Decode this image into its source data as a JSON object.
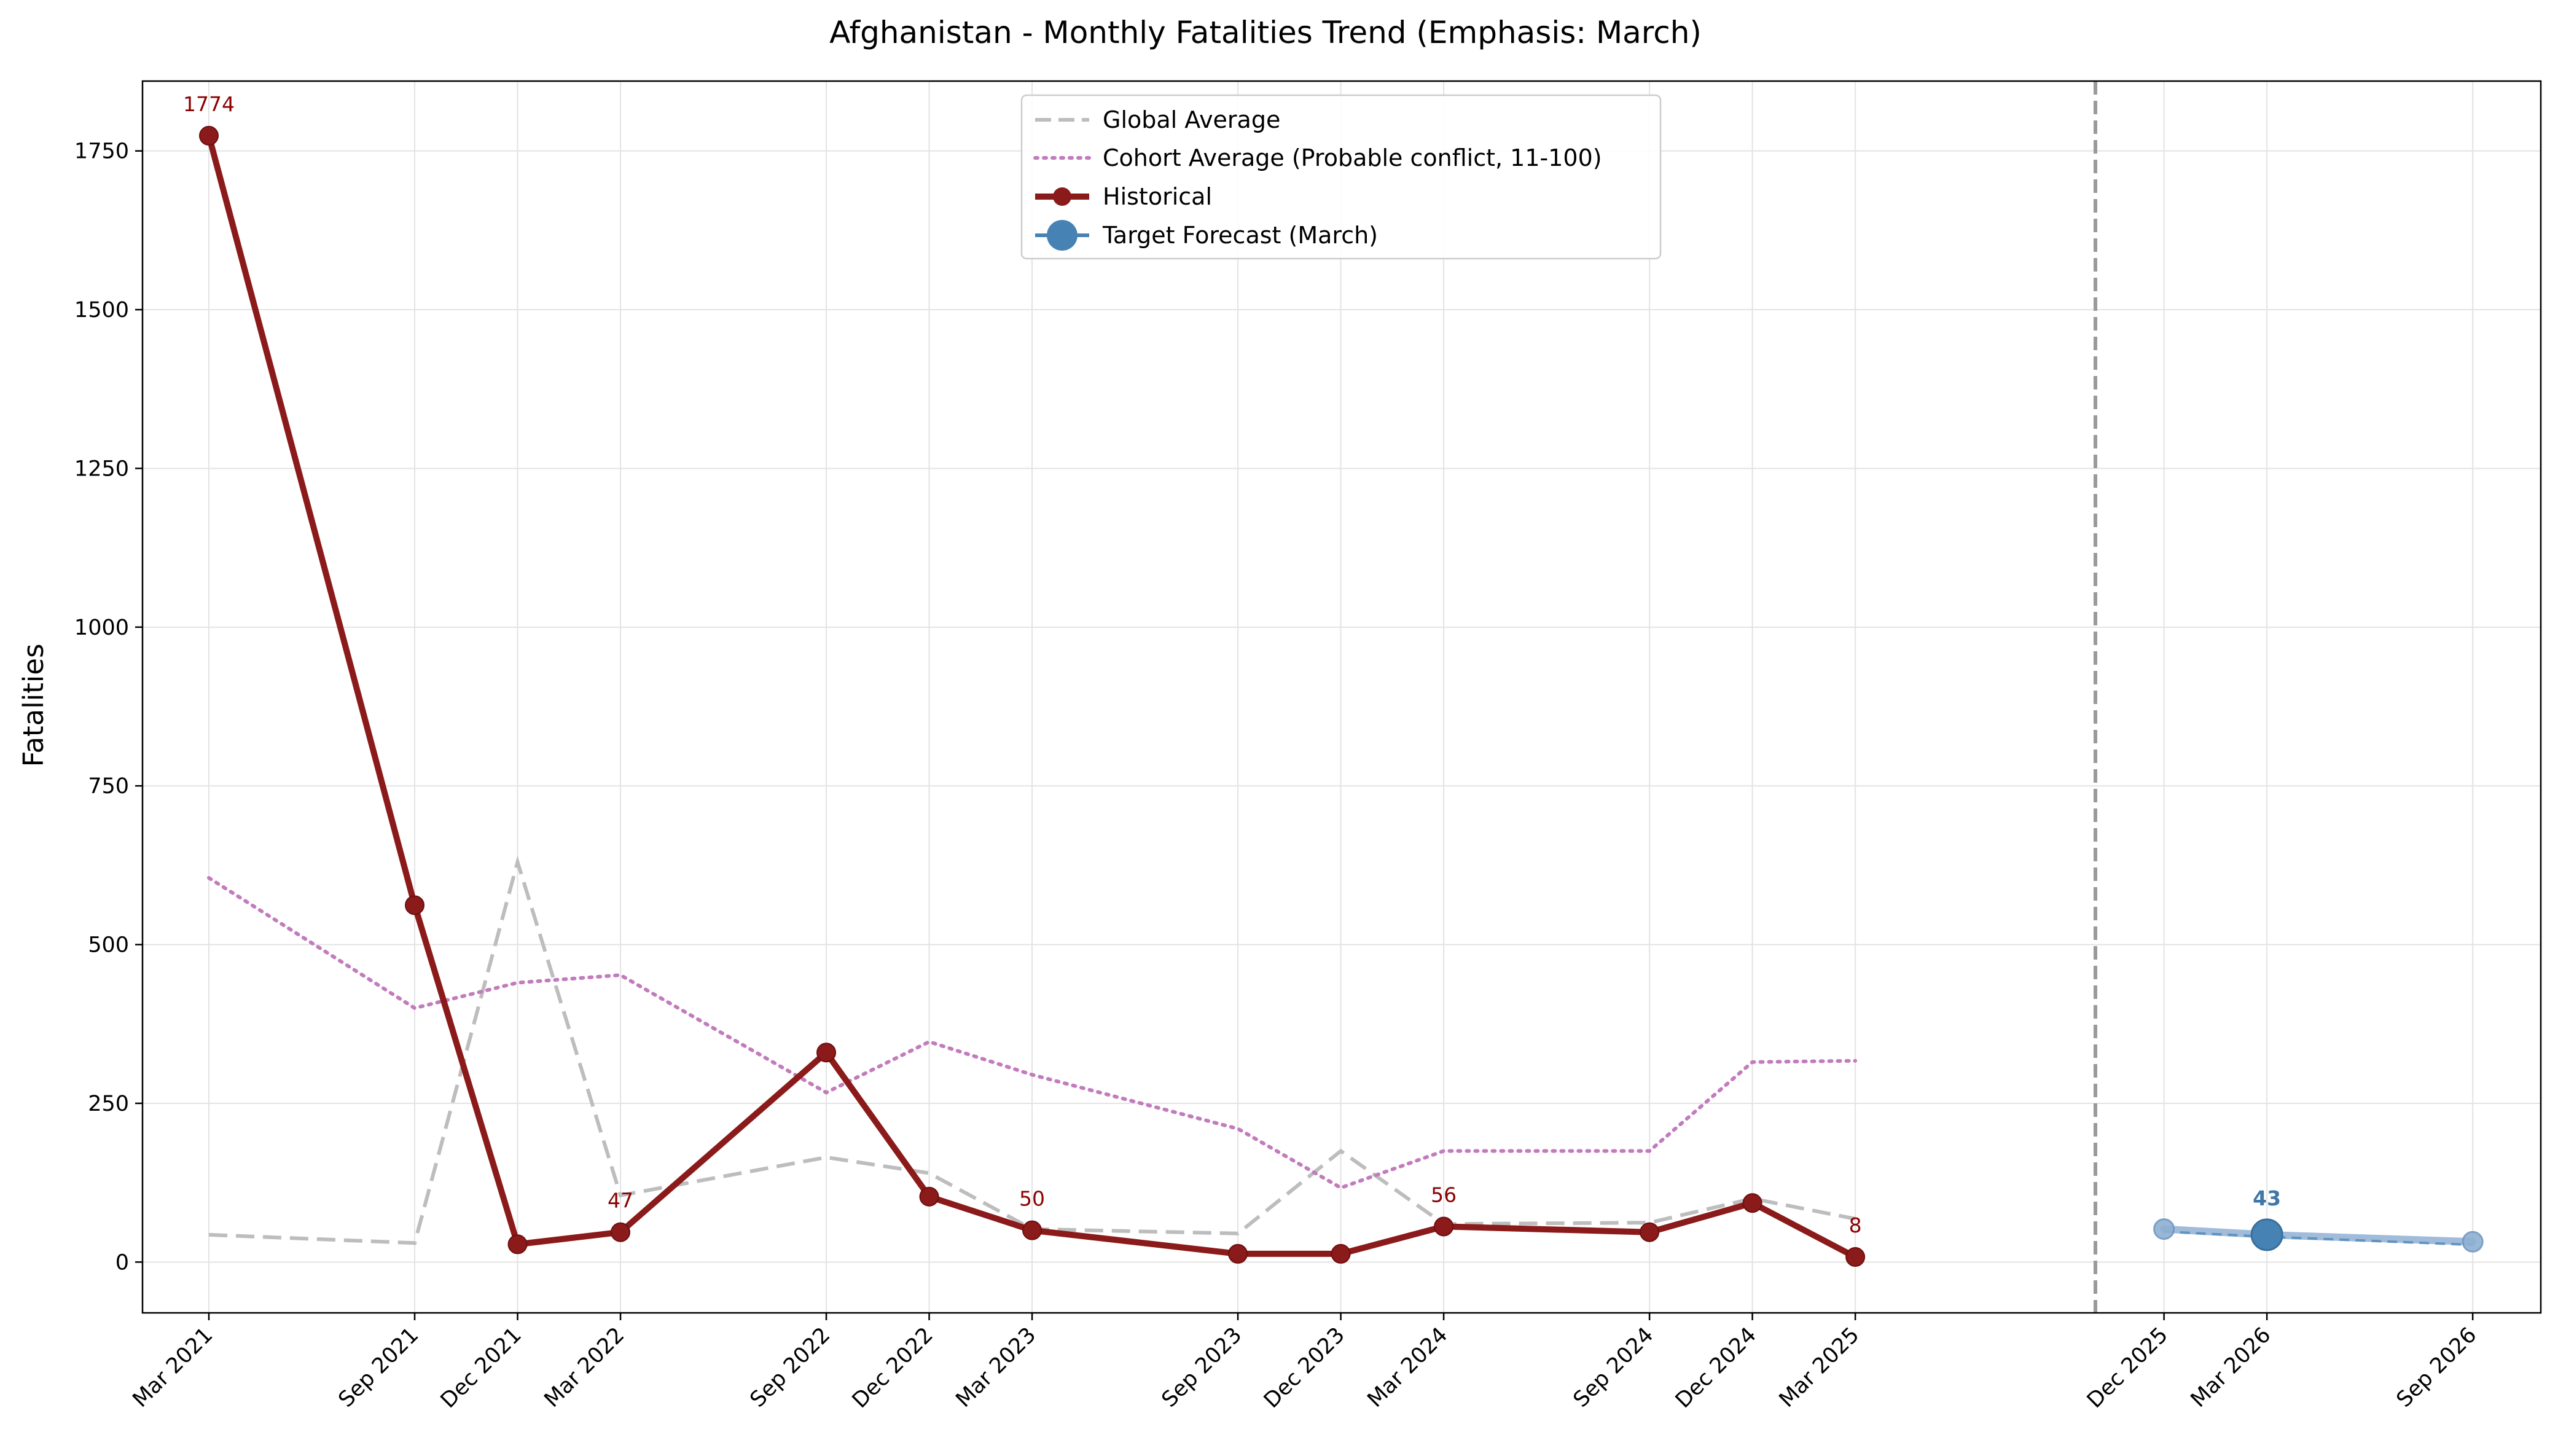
{
  "chart_data": {
    "type": "line",
    "title": "Afghanistan - Monthly Fatalities Trend (Emphasis: March)",
    "ylabel": "Fatalities",
    "xlabel": "",
    "ylim": [
      -80,
      1860
    ],
    "yticks": [
      0,
      250,
      500,
      750,
      1000,
      1250,
      1500,
      1750
    ],
    "grid": true,
    "legend_position": "upper-center",
    "x_date_range": [
      "2021-03",
      "2026-10"
    ],
    "x_ticks": [
      {
        "date": "2021-03",
        "label": "Mar 2021"
      },
      {
        "date": "2021-09",
        "label": "Sep 2021"
      },
      {
        "date": "2021-12",
        "label": "Dec 2021"
      },
      {
        "date": "2022-03",
        "label": "Mar 2022"
      },
      {
        "date": "2022-09",
        "label": "Sep 2022"
      },
      {
        "date": "2022-12",
        "label": "Dec 2022"
      },
      {
        "date": "2023-03",
        "label": "Mar 2023"
      },
      {
        "date": "2023-09",
        "label": "Sep 2023"
      },
      {
        "date": "2023-12",
        "label": "Dec 2023"
      },
      {
        "date": "2024-03",
        "label": "Mar 2024"
      },
      {
        "date": "2024-09",
        "label": "Sep 2024"
      },
      {
        "date": "2024-12",
        "label": "Dec 2024"
      },
      {
        "date": "2025-03",
        "label": "Mar 2025"
      },
      {
        "date": "2025-12",
        "label": "Dec 2025"
      },
      {
        "date": "2026-03",
        "label": "Mar 2026"
      },
      {
        "date": "2026-09",
        "label": "Sep 2026"
      }
    ],
    "forecast_divider_date": "2025-10",
    "series": [
      {
        "name": "Global Average",
        "color": "#bdbdbd",
        "style": "dashed",
        "points": [
          {
            "x": "2021-03",
            "y": 43
          },
          {
            "x": "2021-09",
            "y": 30
          },
          {
            "x": "2021-12",
            "y": 630
          },
          {
            "x": "2022-03",
            "y": 105
          },
          {
            "x": "2022-09",
            "y": 165
          },
          {
            "x": "2022-12",
            "y": 140
          },
          {
            "x": "2023-03",
            "y": 52
          },
          {
            "x": "2023-09",
            "y": 45
          },
          {
            "x": "2023-12",
            "y": 175
          },
          {
            "x": "2024-03",
            "y": 60
          },
          {
            "x": "2024-09",
            "y": 62
          },
          {
            "x": "2024-12",
            "y": 100
          },
          {
            "x": "2025-03",
            "y": 68
          }
        ]
      },
      {
        "name": "Cohort Average (Probable conflict, 11-100)",
        "color": "#c27bbd",
        "style": "dotted",
        "points": [
          {
            "x": "2021-03",
            "y": 605
          },
          {
            "x": "2021-09",
            "y": 400
          },
          {
            "x": "2021-12",
            "y": 440
          },
          {
            "x": "2022-03",
            "y": 452
          },
          {
            "x": "2022-09",
            "y": 267
          },
          {
            "x": "2022-12",
            "y": 347
          },
          {
            "x": "2023-03",
            "y": 295
          },
          {
            "x": "2023-09",
            "y": 210
          },
          {
            "x": "2023-12",
            "y": 117
          },
          {
            "x": "2024-03",
            "y": 175
          },
          {
            "x": "2024-09",
            "y": 175
          },
          {
            "x": "2024-12",
            "y": 315
          },
          {
            "x": "2025-03",
            "y": 317
          }
        ]
      },
      {
        "name": "Historical",
        "color": "#8b1a1a",
        "style": "solid",
        "points": [
          {
            "x": "2021-03",
            "y": 1774
          },
          {
            "x": "2021-09",
            "y": 562
          },
          {
            "x": "2021-12",
            "y": 28
          },
          {
            "x": "2022-03",
            "y": 47
          },
          {
            "x": "2022-09",
            "y": 330
          },
          {
            "x": "2022-12",
            "y": 103
          },
          {
            "x": "2023-03",
            "y": 50
          },
          {
            "x": "2023-09",
            "y": 13
          },
          {
            "x": "2023-12",
            "y": 13
          },
          {
            "x": "2024-03",
            "y": 56
          },
          {
            "x": "2024-09",
            "y": 47
          },
          {
            "x": "2024-12",
            "y": 93
          },
          {
            "x": "2025-03",
            "y": 8
          }
        ]
      },
      {
        "name": "Target Forecast (March)",
        "color": "#4682b4",
        "style": "solid",
        "points": [
          {
            "x": "2025-12",
            "y": 52
          },
          {
            "x": "2026-03",
            "y": 43
          },
          {
            "x": "2026-09",
            "y": 32
          }
        ]
      }
    ],
    "forecast_guide": {
      "color": "#4682b4",
      "style": "dashed",
      "points": [
        {
          "x": "2025-12",
          "y": 48
        },
        {
          "x": "2026-03",
          "y": 40
        },
        {
          "x": "2026-09",
          "y": 27
        }
      ]
    },
    "annotations": [
      {
        "x": "2021-03",
        "y": 1774,
        "text": "1774",
        "color": "#8b0000",
        "bold": false
      },
      {
        "x": "2022-03",
        "y": 47,
        "text": "47",
        "color": "#8b0000",
        "bold": false
      },
      {
        "x": "2023-03",
        "y": 50,
        "text": "50",
        "color": "#8b0000",
        "bold": false
      },
      {
        "x": "2024-03",
        "y": 56,
        "text": "56",
        "color": "#8b0000",
        "bold": false
      },
      {
        "x": "2025-03",
        "y": 8,
        "text": "8",
        "color": "#8b0000",
        "bold": false
      },
      {
        "x": "2026-03",
        "y": 43,
        "text": "43",
        "color": "#3e77a8",
        "bold": true
      }
    ]
  }
}
